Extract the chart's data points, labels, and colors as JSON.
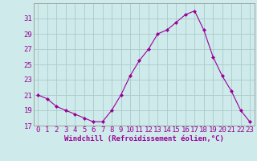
{
  "x": [
    0,
    1,
    2,
    3,
    4,
    5,
    6,
    7,
    8,
    9,
    10,
    11,
    12,
    13,
    14,
    15,
    16,
    17,
    18,
    19,
    20,
    21,
    22,
    23
  ],
  "y": [
    21.0,
    20.5,
    19.5,
    19.0,
    18.5,
    18.0,
    17.5,
    17.5,
    19.0,
    21.0,
    23.5,
    25.5,
    27.0,
    29.0,
    29.5,
    30.5,
    31.5,
    32.0,
    29.5,
    26.0,
    23.5,
    21.5,
    19.0,
    17.5
  ],
  "line_color": "#990099",
  "marker": "D",
  "marker_size": 2.0,
  "background_color": "#ceeaea",
  "grid_color": "#aacccc",
  "xlabel": "Windchill (Refroidissement éolien,°C)",
  "xlabel_color": "#990099",
  "tick_color": "#990099",
  "ylim": [
    17,
    33
  ],
  "yticks": [
    17,
    19,
    21,
    23,
    25,
    27,
    29,
    31
  ],
  "xticks": [
    0,
    1,
    2,
    3,
    4,
    5,
    6,
    7,
    8,
    9,
    10,
    11,
    12,
    13,
    14,
    15,
    16,
    17,
    18,
    19,
    20,
    21,
    22,
    23
  ],
  "xlim": [
    -0.5,
    23.5
  ],
  "spine_color": "#888888",
  "figure_bg": "#ceeaea",
  "line_width": 0.8,
  "tick_fontsize": 6.5,
  "xlabel_fontsize": 6.5
}
